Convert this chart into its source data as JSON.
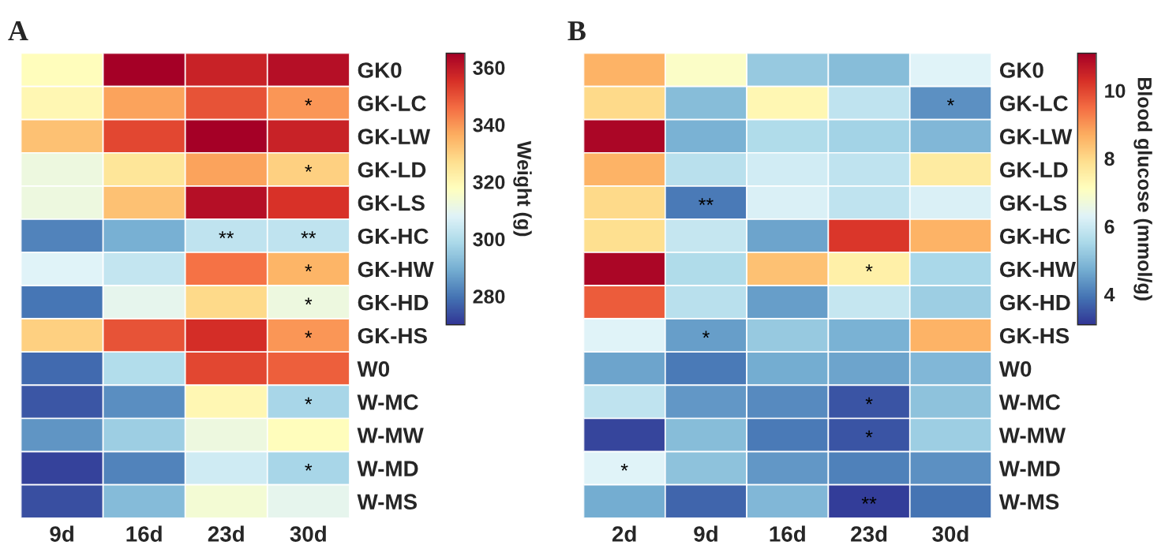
{
  "chart_data": [
    {
      "type": "heatmap",
      "title": "A",
      "clabel": "Weight (g)",
      "categories": [
        "9d",
        "16d",
        "23d",
        "30d"
      ],
      "y_categories": [
        "GK0",
        "GK-LC",
        "GK-LW",
        "GK-LD",
        "GK-LS",
        "GK-HC",
        "GK-HW",
        "GK-HD",
        "GK-HS",
        "W0",
        "W-MC",
        "W-MW",
        "W-MD",
        "W-MS"
      ],
      "cells": [
        [
          318,
          365,
          358,
          362
        ],
        [
          320,
          338,
          350,
          340
        ],
        [
          333,
          352,
          365,
          358
        ],
        [
          312,
          325,
          338,
          330
        ],
        [
          312,
          333,
          362,
          355
        ],
        [
          282,
          290,
          302,
          302
        ],
        [
          308,
          303,
          345,
          335
        ],
        [
          280,
          310,
          328,
          312
        ],
        [
          330,
          350,
          356,
          340
        ],
        [
          278,
          300,
          352,
          348
        ],
        [
          275,
          284,
          320,
          298
        ],
        [
          285,
          296,
          312,
          318
        ],
        [
          272,
          282,
          305,
          298
        ],
        [
          274,
          292,
          314,
          310
        ]
      ],
      "cell_labels": [
        [
          null,
          null,
          null,
          null
        ],
        [
          null,
          null,
          null,
          "*"
        ],
        [
          null,
          null,
          null,
          null
        ],
        [
          null,
          null,
          null,
          "*"
        ],
        [
          null,
          null,
          null,
          null
        ],
        [
          null,
          null,
          "**",
          "**"
        ],
        [
          null,
          null,
          null,
          "*"
        ],
        [
          null,
          null,
          null,
          "*"
        ],
        [
          null,
          null,
          null,
          "*"
        ],
        [
          null,
          null,
          null,
          null
        ],
        [
          null,
          null,
          null,
          "*"
        ],
        [
          null,
          null,
          null,
          null
        ],
        [
          null,
          null,
          null,
          "*"
        ],
        [
          null,
          null,
          null,
          null
        ]
      ],
      "clim": [
        270,
        365
      ],
      "cticks": [
        280,
        300,
        320,
        340,
        360
      ]
    },
    {
      "type": "heatmap",
      "title": "B",
      "clabel": "Blood glucose (mmol/g)",
      "categories": [
        "2d",
        "9d",
        "16d",
        "23d",
        "30d"
      ],
      "y_categories": [
        "GK0",
        "GK-LC",
        "GK-LW",
        "GK-LD",
        "GK-LS",
        "GK-HC",
        "GK-HW",
        "GK-HD",
        "GK-HS",
        "W0",
        "W-MC",
        "W-MW",
        "W-MD",
        "W-MS"
      ],
      "cells": [
        [
          8.6,
          7.0,
          5.2,
          5.0,
          6.3
        ],
        [
          8.0,
          5.0,
          7.3,
          5.8,
          4.3
        ],
        [
          11.0,
          4.8,
          5.6,
          5.4,
          4.9
        ],
        [
          8.6,
          5.7,
          6.1,
          5.8,
          7.6
        ],
        [
          8.0,
          4.0,
          6.2,
          5.8,
          6.2
        ],
        [
          7.9,
          5.9,
          4.6,
          10.2,
          8.6
        ],
        [
          11.0,
          5.6,
          8.4,
          7.5,
          5.5
        ],
        [
          9.7,
          5.7,
          4.5,
          5.9,
          5.3
        ],
        [
          6.3,
          4.5,
          5.2,
          4.8,
          8.6
        ],
        [
          4.6,
          4.0,
          4.7,
          4.6,
          4.9
        ],
        [
          5.8,
          4.4,
          4.2,
          3.5,
          5.1
        ],
        [
          3.3,
          5.0,
          4.0,
          3.5,
          5.3
        ],
        [
          6.3,
          5.1,
          4.4,
          4.1,
          4.3
        ],
        [
          4.7,
          3.7,
          4.9,
          3.2,
          3.9
        ]
      ],
      "cell_labels": [
        [
          null,
          null,
          null,
          null,
          null
        ],
        [
          null,
          null,
          null,
          null,
          "*"
        ],
        [
          null,
          null,
          null,
          null,
          null
        ],
        [
          null,
          null,
          null,
          null,
          null
        ],
        [
          null,
          "**",
          null,
          null,
          null
        ],
        [
          null,
          null,
          null,
          null,
          null
        ],
        [
          null,
          null,
          null,
          "*",
          null
        ],
        [
          null,
          null,
          null,
          null,
          null
        ],
        [
          null,
          "*",
          null,
          null,
          null
        ],
        [
          null,
          null,
          null,
          null,
          null
        ],
        [
          null,
          null,
          null,
          "*",
          null
        ],
        [
          null,
          null,
          null,
          "*",
          null
        ],
        [
          "*",
          null,
          null,
          null,
          null
        ],
        [
          null,
          null,
          null,
          "**",
          null
        ]
      ],
      "clim": [
        3.1,
        11.1
      ],
      "cticks": [
        4,
        6,
        8,
        10
      ]
    }
  ]
}
